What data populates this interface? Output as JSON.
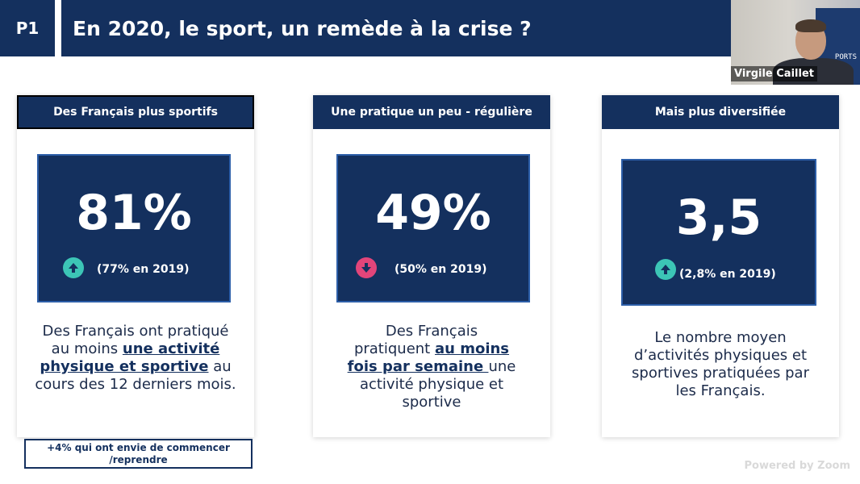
{
  "header": {
    "badge": "P1",
    "title": "En 2020, le sport, un remède à la crise ?"
  },
  "webcam": {
    "name": "Virgile Caillet",
    "wall_text": "PORTS"
  },
  "cards": [
    {
      "heading": "Des Français plus sportifs",
      "value": "81%",
      "trend": "up",
      "trend_icon": "arrow-up-circle-icon",
      "trend_label": "(77% en 2019)",
      "desc_pre": "Des Français ont pratiqué au moins ",
      "desc_hl": "une activité physique et sportive",
      "desc_post": " au cours des 12 derniers mois."
    },
    {
      "heading": "Une pratique un peu - régulière",
      "value": "49%",
      "trend": "down",
      "trend_icon": "arrow-down-circle-icon",
      "trend_label": "(50% en 2019)",
      "desc_pre": "Des Français pratiquent ",
      "desc_hl": "au moins fois par semaine ",
      "desc_post": "une activité physique et sportive"
    },
    {
      "heading": "Mais plus diversifiée",
      "value": "3,5",
      "trend": "up",
      "trend_icon": "arrow-up-circle-icon",
      "trend_label": "(2,8% en 2019)",
      "desc_pre": "Le nombre moyen d’activités physiques et sportives pratiquées par les Français.",
      "desc_hl": "",
      "desc_post": ""
    }
  ],
  "footnote": "+4% qui ont envie de commencer /reprendre",
  "watermark": "Powered by Zoom",
  "colors": {
    "navy": "#14305e",
    "up": "#3cc5b6",
    "down": "#e2457a"
  }
}
